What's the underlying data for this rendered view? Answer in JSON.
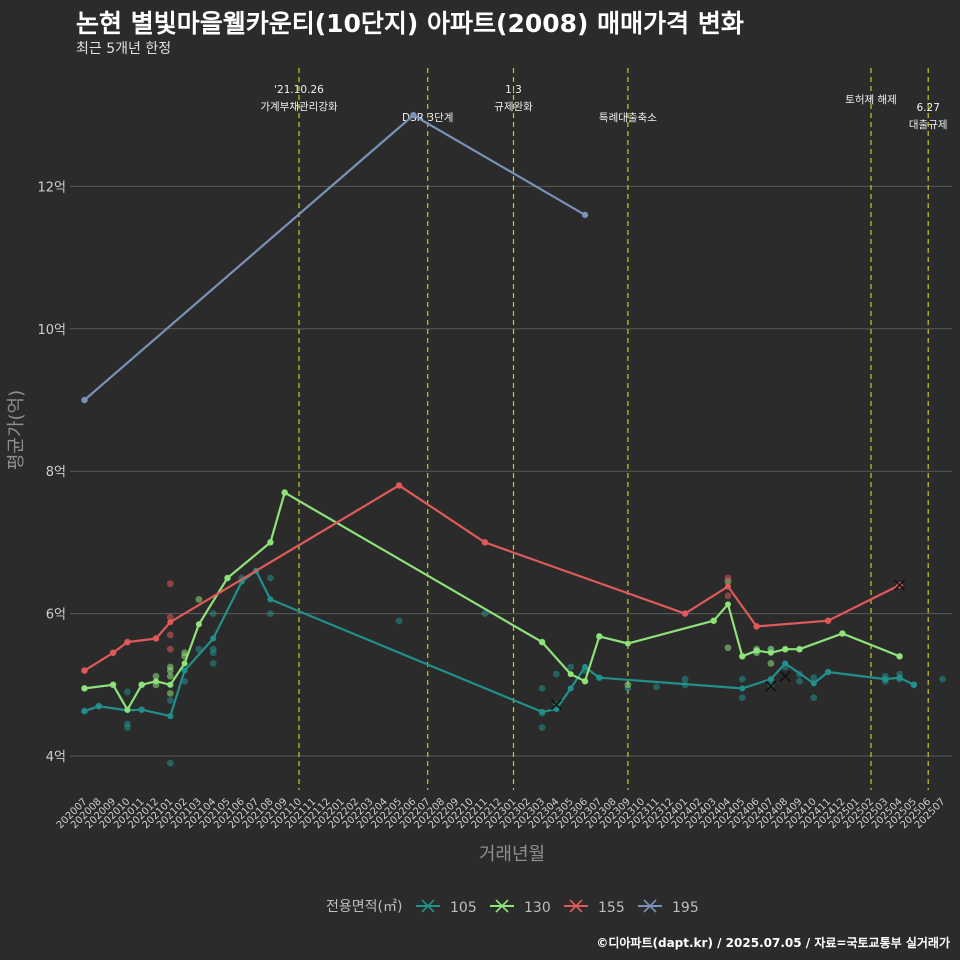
{
  "header": {
    "title": "논현 별빛마을웰카운티(10단지) 아파트(2008) 매매가격 변화",
    "subtitle": "최근 5개년 한정"
  },
  "caption": "©디아파트(dapt.kr) / 2025.07.05 / 자료=국토교통부 실거래가",
  "colors": {
    "105": "#21908d",
    "130": "#8ee27a",
    "155": "#e05a5a",
    "195": "#7a92b8",
    "vline": "#c8c820",
    "grid": "#5a5a5a"
  },
  "chart_data": {
    "type": "line",
    "title": "논현 별빛마을웰카운티(10단지) 아파트(2008) 매매가격 변화",
    "xlabel": "거래년월",
    "ylabel": "평균가(억)",
    "ylim": [
      3.5,
      13.6
    ],
    "yticks": [
      4,
      6,
      8,
      10,
      12
    ],
    "ytick_labels": [
      "4억",
      "6억",
      "8억",
      "10억",
      "12억"
    ],
    "x_range": [
      "202007",
      "202507"
    ],
    "legend_title": "전용면적(㎡)",
    "legend_placement": "bottom",
    "series": [
      {
        "name": "105",
        "color": "#21908d",
        "line": [
          [
            "202007",
            4.63
          ],
          [
            "202008",
            4.7
          ],
          [
            "202010",
            4.64
          ],
          [
            "202011",
            4.65
          ],
          [
            "202101",
            4.56
          ],
          [
            "202102",
            5.2
          ],
          [
            "202104",
            5.65
          ],
          [
            "202106",
            6.45
          ],
          [
            "202107",
            6.6
          ],
          [
            "202108",
            6.2
          ],
          [
            "202303",
            4.62
          ],
          [
            "202304",
            4.66
          ],
          [
            "202305",
            4.95
          ],
          [
            "202306",
            5.25
          ],
          [
            "202307",
            5.1
          ],
          [
            "202405",
            4.95
          ],
          [
            "202407",
            5.08
          ],
          [
            "202408",
            5.3
          ],
          [
            "202410",
            5.02
          ],
          [
            "202411",
            5.18
          ],
          [
            "202503",
            5.08
          ],
          [
            "202504",
            5.1
          ],
          [
            "202505",
            5.0
          ]
        ],
        "points": [
          [
            "202007",
            4.63
          ],
          [
            "202008",
            4.7
          ],
          [
            "202010",
            4.9
          ],
          [
            "202010",
            4.45
          ],
          [
            "202010",
            4.4
          ],
          [
            "202011",
            4.65
          ],
          [
            "202101",
            3.9
          ],
          [
            "202101",
            4.78
          ],
          [
            "202101",
            5.0
          ],
          [
            "202102",
            5.05
          ],
          [
            "202103",
            5.5
          ],
          [
            "202104",
            5.5
          ],
          [
            "202104",
            5.3
          ],
          [
            "202104",
            5.45
          ],
          [
            "202104",
            6.0
          ],
          [
            "202106",
            6.5
          ],
          [
            "202108",
            6.5
          ],
          [
            "202108",
            6.0
          ],
          [
            "202205",
            5.9
          ],
          [
            "202211",
            6.0
          ],
          [
            "202303",
            4.6
          ],
          [
            "202303",
            4.95
          ],
          [
            "202303",
            4.4
          ],
          [
            "202304",
            4.72
          ],
          [
            "202304",
            5.15
          ],
          [
            "202305",
            5.25
          ],
          [
            "202306",
            5.2
          ],
          [
            "202307",
            5.1
          ],
          [
            "202309",
            4.95
          ],
          [
            "202311",
            4.97
          ],
          [
            "202401",
            5.08
          ],
          [
            "202401",
            5.0
          ],
          [
            "202405",
            5.08
          ],
          [
            "202405",
            4.82
          ],
          [
            "202406",
            5.48
          ],
          [
            "202407",
            5.5
          ],
          [
            "202407",
            5.0
          ],
          [
            "202408",
            5.25
          ],
          [
            "202409",
            5.15
          ],
          [
            "202409",
            5.05
          ],
          [
            "202410",
            5.1
          ],
          [
            "202410",
            4.82
          ],
          [
            "202411",
            5.18
          ],
          [
            "202503",
            5.12
          ],
          [
            "202503",
            5.05
          ],
          [
            "202504",
            5.15
          ],
          [
            "202504",
            5.08
          ],
          [
            "202505",
            5.0
          ],
          [
            "202507",
            5.08
          ]
        ],
        "crosses": [
          [
            "202304",
            4.72
          ],
          [
            "202407",
            4.98
          ],
          [
            "202408",
            5.12
          ]
        ]
      },
      {
        "name": "130",
        "color": "#8ee27a",
        "line": [
          [
            "202007",
            4.95
          ],
          [
            "202009",
            5.0
          ],
          [
            "202010",
            4.65
          ],
          [
            "202011",
            5.0
          ],
          [
            "202012",
            5.05
          ],
          [
            "202101",
            5.0
          ],
          [
            "202102",
            5.3
          ],
          [
            "202103",
            5.85
          ],
          [
            "202105",
            6.5
          ],
          [
            "202108",
            7.0
          ],
          [
            "202109",
            7.7
          ],
          [
            "202303",
            5.6
          ],
          [
            "202305",
            5.15
          ],
          [
            "202306",
            5.05
          ],
          [
            "202307",
            5.68
          ],
          [
            "202309",
            5.58
          ],
          [
            "202403",
            5.9
          ],
          [
            "202404",
            6.13
          ],
          [
            "202405",
            5.4
          ],
          [
            "202406",
            5.48
          ],
          [
            "202407",
            5.45
          ],
          [
            "202408",
            5.5
          ],
          [
            "202409",
            5.5
          ],
          [
            "202412",
            5.72
          ],
          [
            "202504",
            5.4
          ]
        ],
        "points": [
          [
            "202007",
            4.95
          ],
          [
            "202009",
            5.0
          ],
          [
            "202011",
            5.0
          ],
          [
            "202012",
            5.12
          ],
          [
            "202012",
            5.0
          ],
          [
            "202101",
            5.25
          ],
          [
            "202101",
            5.2
          ],
          [
            "202101",
            5.12
          ],
          [
            "202101",
            4.88
          ],
          [
            "202102",
            5.45
          ],
          [
            "202102",
            5.4
          ],
          [
            "202103",
            6.2
          ],
          [
            "202105",
            6.5
          ],
          [
            "202108",
            7.0
          ],
          [
            "202109",
            7.7
          ],
          [
            "202303",
            5.6
          ],
          [
            "202306",
            5.05
          ],
          [
            "202307",
            5.68
          ],
          [
            "202309",
            5.0
          ],
          [
            "202403",
            5.9
          ],
          [
            "202404",
            6.45
          ],
          [
            "202404",
            5.52
          ],
          [
            "202405",
            5.4
          ],
          [
            "202406",
            5.5
          ],
          [
            "202406",
            5.45
          ],
          [
            "202407",
            5.5
          ],
          [
            "202407",
            5.3
          ],
          [
            "202408",
            5.5
          ],
          [
            "202409",
            5.5
          ],
          [
            "202412",
            5.72
          ],
          [
            "202504",
            5.4
          ]
        ],
        "crosses": []
      },
      {
        "name": "155",
        "color": "#e05a5a",
        "line": [
          [
            "202007",
            5.2
          ],
          [
            "202009",
            5.45
          ],
          [
            "202010",
            5.6
          ],
          [
            "202012",
            5.65
          ],
          [
            "202101",
            5.88
          ],
          [
            "202205",
            7.8
          ],
          [
            "202211",
            7.0
          ],
          [
            "202401",
            6.0
          ],
          [
            "202404",
            6.38
          ],
          [
            "202406",
            5.82
          ],
          [
            "202411",
            5.9
          ],
          [
            "202504",
            6.4
          ]
        ],
        "points": [
          [
            "202007",
            5.2
          ],
          [
            "202009",
            5.45
          ],
          [
            "202010",
            5.6
          ],
          [
            "202012",
            5.65
          ],
          [
            "202101",
            6.42
          ],
          [
            "202101",
            5.95
          ],
          [
            "202101",
            5.7
          ],
          [
            "202101",
            5.5
          ],
          [
            "202205",
            7.8
          ],
          [
            "202211",
            7.0
          ],
          [
            "202401",
            6.0
          ],
          [
            "202404",
            6.5
          ],
          [
            "202404",
            6.25
          ],
          [
            "202406",
            5.82
          ],
          [
            "202411",
            5.9
          ],
          [
            "202504",
            6.4
          ]
        ],
        "crosses": [
          [
            "202504",
            6.4
          ]
        ]
      },
      {
        "name": "195",
        "color": "#7a92b8",
        "line": [
          [
            "202007",
            9.0
          ],
          [
            "202206",
            13.0
          ],
          [
            "202306",
            11.6
          ]
        ],
        "points": [
          [
            "202007",
            9.0
          ],
          [
            "202206",
            13.0
          ],
          [
            "202306",
            11.6
          ]
        ],
        "crosses": []
      }
    ],
    "events": [
      {
        "month": "202110",
        "lines": [
          "'21.10.26",
          "가계부채관리강화"
        ],
        "level": 0
      },
      {
        "month": "202207",
        "lines": [
          "DSR 3단계"
        ],
        "level": 2
      },
      {
        "month": "202301",
        "lines": [
          "1.3",
          "규제완화"
        ],
        "level": 0
      },
      {
        "month": "202309",
        "lines": [
          "특례대출축소"
        ],
        "level": 2
      },
      {
        "month": "202502",
        "lines": [
          "토허제 해제"
        ],
        "level": 1
      },
      {
        "month": "202506",
        "lines": [
          "6.27",
          "대출규제"
        ],
        "level": 1.7
      }
    ]
  }
}
